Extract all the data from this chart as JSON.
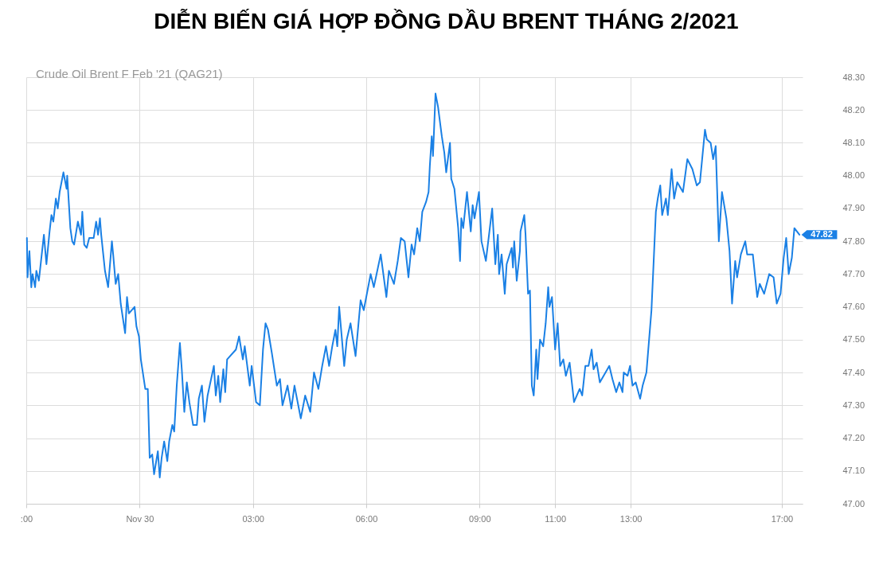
{
  "chart_data": {
    "type": "line",
    "title": "DIỄN BIẾN GIÁ HỢP ĐỒNG DẦU BRENT THÁNG 2/2021",
    "annotations": [
      "Crude Oil Brent F Feb '21 (QAG21)",
      {
        "text": "47.82",
        "x": "--11-30T17:28",
        "y": 47.82
      }
    ],
    "xlim": [
      "--11-29T21:00",
      "--11-30T17:33"
    ],
    "xticks": [
      {
        "value": "--11-29T21:00",
        "label": ":00"
      },
      {
        "value": "--11-30T00:00",
        "label": "Nov 30"
      },
      {
        "value": "--11-30T03:00",
        "label": "03:00"
      },
      {
        "value": "--11-30T06:00",
        "label": "06:00"
      },
      {
        "value": "--11-30T09:00",
        "label": "09:00"
      },
      {
        "value": "--11-30T11:00",
        "label": "11:00"
      },
      {
        "value": "--11-30T13:00",
        "label": "13:00"
      },
      {
        "value": "--11-30T17:00",
        "label": "17:00"
      }
    ],
    "ylim": [
      47,
      48.3
    ],
    "yticks": [
      {
        "value": 47,
        "label": "47.00"
      },
      {
        "value": 47.1,
        "label": "47.10"
      },
      {
        "value": 47.2,
        "label": "47.20"
      },
      {
        "value": 47.3,
        "label": "47.30"
      },
      {
        "value": 47.4,
        "label": "47.40"
      },
      {
        "value": 47.5,
        "label": "47.50"
      },
      {
        "value": 47.6,
        "label": "47.60"
      },
      {
        "value": 47.7,
        "label": "47.70"
      },
      {
        "value": 47.8,
        "label": "47.80"
      },
      {
        "value": 47.9,
        "label": "47.90"
      },
      {
        "value": 48,
        "label": "48.00"
      },
      {
        "value": 48.1,
        "label": "48.10"
      },
      {
        "value": 48.2,
        "label": "48.20"
      },
      {
        "value": 48.3,
        "label": "48.30"
      }
    ],
    "grid": true,
    "marker": "none",
    "line_style": "solid",
    "series": [
      {
        "color": "#1a80e5",
        "x": [
          "--11-29T21:01",
          "--11-29T21:02",
          "--11-29T21:05",
          "--11-29T21:08",
          "--11-29T21:10",
          "--11-29T21:14",
          "--11-29T21:16",
          "--11-29T21:20",
          "--11-29T21:28",
          "--11-29T21:32",
          "--11-29T21:37",
          "--11-29T21:40",
          "--11-29T21:43",
          "--11-29T21:47",
          "--11-29T21:50",
          "--11-29T21:53",
          "--11-29T21:59",
          "--11-29T22:04",
          "--11-29T22:05",
          "--11-29T22:10",
          "--11-29T22:13",
          "--11-29T22:16",
          "--11-29T22:22",
          "--11-29T22:27",
          "--11-29T22:29",
          "--11-29T22:32",
          "--11-29T22:36",
          "--11-29T22:40",
          "--11-29T22:47",
          "--11-29T22:51",
          "--11-29T22:54",
          "--11-29T22:57",
          "--11-29T22:59",
          "--11-29T23:05",
          "--11-29T23:10",
          "--11-29T23:16",
          "--11-29T23:18",
          "--11-29T23:22",
          "--11-29T23:26",
          "--11-29T23:30",
          "--11-29T23:37",
          "--11-29T23:40",
          "--11-29T23:43",
          "--11-29T23:52",
          "--11-29T23:55",
          "--11-29T23:59",
          "--11-30T00:02",
          "--11-30T00:09",
          "--11-30T00:13",
          "--11-30T00:16",
          "--11-30T00:20",
          "--11-30T00:23",
          "--11-30T00:29",
          "--11-30T00:32",
          "--11-30T00:35",
          "--11-30T00:39",
          "--11-30T00:44",
          "--11-30T00:47",
          "--11-30T00:52",
          "--11-30T00:55",
          "--11-30T00:59",
          "--11-30T01:04",
          "--11-30T01:07",
          "--11-30T01:11",
          "--11-30T01:15",
          "--11-30T01:19",
          "--11-30T01:25",
          "--11-30T01:31",
          "--11-30T01:34",
          "--11-30T01:39",
          "--11-30T01:43",
          "--11-30T01:48",
          "--11-30T01:58",
          "--11-30T02:01",
          "--11-30T02:05",
          "--11-30T02:08",
          "--11-30T02:13",
          "--11-30T02:16",
          "--11-30T02:19",
          "--11-30T02:33",
          "--11-30T02:38",
          "--11-30T02:44",
          "--11-30T02:47",
          "--11-30T02:55",
          "--11-30T02:58",
          "--11-30T03:05",
          "--11-30T03:11",
          "--11-30T03:16",
          "--11-30T03:20",
          "--11-30T03:24",
          "--11-30T03:30",
          "--11-30T03:38",
          "--11-30T03:43",
          "--11-30T03:47",
          "--11-30T03:55",
          "--11-30T04:01",
          "--11-30T04:06",
          "--11-30T04:16",
          "--11-30T04:23",
          "--11-30T04:31",
          "--11-30T04:37",
          "--11-30T04:44",
          "--11-30T04:50",
          "--11-30T04:56",
          "--11-30T05:01",
          "--11-30T05:06",
          "--11-30T05:11",
          "--11-30T05:14",
          "--11-30T05:17",
          "--11-30T05:25",
          "--11-30T05:29",
          "--11-30T05:35",
          "--11-30T05:43",
          "--11-30T05:51",
          "--11-30T05:56",
          "--11-30T06:07",
          "--11-30T06:12",
          "--11-30T06:23",
          "--11-30T06:32",
          "--11-30T06:36",
          "--11-30T06:44",
          "--11-30T06:50",
          "--11-30T06:55",
          "--11-30T07:01",
          "--11-30T07:07",
          "--11-30T07:12",
          "--11-30T07:16",
          "--11-30T07:21",
          "--11-30T07:25",
          "--11-30T07:29",
          "--11-30T07:35",
          "--11-30T07:39",
          "--11-30T07:41",
          "--11-30T07:44",
          "--11-30T07:46",
          "--11-30T07:50",
          "--11-30T07:54",
          "--11-30T08:00",
          "--11-30T08:04",
          "--11-30T08:07",
          "--11-30T08:13",
          "--11-30T08:15",
          "--11-30T08:20",
          "--11-30T08:26",
          "--11-30T08:29",
          "--11-30T08:31",
          "--11-30T08:34",
          "--11-30T08:40",
          "--11-30T08:46",
          "--11-30T08:49",
          "--11-30T08:52",
          "--11-30T08:59",
          "--11-30T09:03",
          "--11-30T09:10",
          "--11-30T09:15",
          "--11-30T09:20",
          "--11-30T09:25",
          "--11-30T09:29",
          "--11-30T09:31",
          "--11-30T09:35",
          "--11-30T09:40",
          "--11-30T09:43",
          "--11-30T09:51",
          "--11-30T09:53",
          "--11-30T09:55",
          "--11-30T09:59",
          "--11-30T10:04",
          "--11-30T10:05",
          "--11-30T10:11",
          "--11-30T10:13",
          "--11-30T10:17",
          "--11-30T10:20",
          "--11-30T10:23",
          "--11-30T10:26",
          "--11-30T10:30",
          "--11-30T10:32",
          "--11-30T10:36",
          "--11-30T10:41",
          "--11-30T10:45",
          "--11-30T10:49",
          "--11-30T10:51",
          "--11-30T10:55",
          "--11-30T11:00",
          "--11-30T11:04",
          "--11-30T11:08",
          "--11-30T11:13",
          "--11-30T11:17",
          "--11-30T11:23",
          "--11-30T11:30",
          "--11-30T11:39",
          "--11-30T11:43",
          "--11-30T11:48",
          "--11-30T11:53",
          "--11-30T11:58",
          "--11-30T12:01",
          "--11-30T12:06",
          "--11-30T12:11",
          "--11-30T12:26",
          "--11-30T12:31",
          "--11-30T12:37",
          "--11-30T12:42",
          "--11-30T12:47",
          "--11-30T12:49",
          "--11-30T12:55",
          "--11-30T12:59",
          "--11-30T13:03",
          "--11-30T13:08",
          "--11-30T13:15",
          "--11-30T13:19",
          "--11-30T13:25",
          "--11-30T13:33",
          "--11-30T13:37",
          "--11-30T13:40",
          "--11-30T13:43",
          "--11-30T13:47",
          "--11-30T13:50",
          "--11-30T13:56",
          "--11-30T13:59",
          "--11-30T14:05",
          "--11-30T14:09",
          "--11-30T14:14",
          "--11-30T14:23",
          "--11-30T14:30",
          "--11-30T14:38",
          "--11-30T14:45",
          "--11-30T14:50",
          "--11-30T14:58",
          "--11-30T15:01",
          "--11-30T15:07",
          "--11-30T15:11",
          "--11-30T15:15",
          "--11-30T15:20",
          "--11-30T15:25",
          "--11-30T15:32",
          "--11-30T15:37",
          "--11-30T15:41",
          "--11-30T15:46",
          "--11-30T15:49",
          "--11-30T15:55",
          "--11-30T16:02",
          "--11-30T16:05",
          "--11-30T16:14",
          "--11-30T16:21",
          "--11-30T16:25",
          "--11-30T16:32",
          "--11-30T16:40",
          "--11-30T16:47",
          "--11-30T16:52",
          "--11-30T16:58",
          "--11-30T17:03",
          "--11-30T17:07",
          "--11-30T17:11",
          "--11-30T17:16",
          "--11-30T17:20",
          "--11-30T17:28"
        ],
        "values": [
          47.81,
          47.69,
          47.77,
          47.66,
          47.7,
          47.66,
          47.71,
          47.68,
          47.82,
          47.73,
          47.83,
          47.88,
          47.86,
          47.93,
          47.9,
          47.95,
          48.01,
          47.96,
          48.0,
          47.84,
          47.8,
          47.79,
          47.86,
          47.82,
          47.89,
          47.79,
          47.78,
          47.81,
          47.81,
          47.86,
          47.82,
          47.87,
          47.82,
          47.71,
          47.66,
          47.8,
          47.76,
          47.67,
          47.7,
          47.61,
          47.52,
          47.63,
          47.58,
          47.6,
          47.54,
          47.51,
          47.44,
          47.35,
          47.35,
          47.14,
          47.15,
          47.09,
          47.16,
          47.08,
          47.14,
          47.19,
          47.13,
          47.19,
          47.24,
          47.22,
          47.36,
          47.49,
          47.41,
          47.28,
          47.37,
          47.31,
          47.24,
          47.24,
          47.32,
          47.36,
          47.25,
          47.33,
          47.42,
          47.33,
          47.39,
          47.31,
          47.41,
          47.34,
          47.44,
          47.47,
          47.51,
          47.44,
          47.48,
          47.36,
          47.42,
          47.31,
          47.3,
          47.47,
          47.55,
          47.53,
          47.46,
          47.36,
          47.38,
          47.3,
          47.36,
          47.29,
          47.36,
          47.26,
          47.33,
          47.28,
          47.4,
          47.35,
          47.42,
          47.48,
          47.42,
          47.48,
          47.53,
          47.48,
          47.6,
          47.42,
          47.5,
          47.55,
          47.45,
          47.62,
          47.59,
          47.7,
          47.66,
          47.76,
          47.63,
          47.71,
          47.67,
          47.74,
          47.81,
          47.8,
          47.69,
          47.79,
          47.76,
          47.84,
          47.8,
          47.89,
          47.92,
          47.95,
          48.03,
          48.12,
          48.06,
          48.25,
          48.21,
          48.12,
          48.07,
          48.01,
          48.1,
          47.99,
          47.96,
          47.84,
          47.74,
          47.87,
          47.84,
          47.95,
          47.83,
          47.91,
          47.87,
          47.95,
          47.8,
          47.74,
          47.82,
          47.9,
          47.73,
          47.82,
          47.7,
          47.76,
          47.64,
          47.73,
          47.78,
          47.72,
          47.8,
          47.68,
          47.77,
          47.83,
          47.88,
          47.82,
          47.64,
          47.65,
          47.36,
          47.33,
          47.47,
          47.38,
          47.5,
          47.48,
          47.55,
          47.66,
          47.6,
          47.63,
          47.47,
          47.55,
          47.42,
          47.44,
          47.39,
          47.43,
          47.31,
          47.35,
          47.33,
          47.42,
          47.42,
          47.47,
          47.41,
          47.43,
          47.37,
          47.42,
          47.38,
          47.34,
          47.37,
          47.34,
          47.4,
          47.39,
          47.42,
          47.36,
          47.37,
          47.32,
          47.36,
          47.4,
          47.59,
          47.76,
          47.89,
          47.93,
          47.97,
          47.88,
          47.93,
          47.88,
          48.02,
          47.93,
          47.98,
          47.95,
          48.05,
          48.02,
          47.97,
          47.98,
          48.14,
          48.11,
          48.1,
          48.05,
          48.09,
          47.8,
          47.95,
          47.87,
          47.77,
          47.61,
          47.74,
          47.69,
          47.76,
          47.8,
          47.76,
          47.76,
          47.63,
          47.67,
          47.64,
          47.7,
          47.69,
          47.61,
          47.64,
          47.75,
          47.81,
          47.7,
          47.75,
          47.84,
          47.82
        ]
      }
    ]
  }
}
